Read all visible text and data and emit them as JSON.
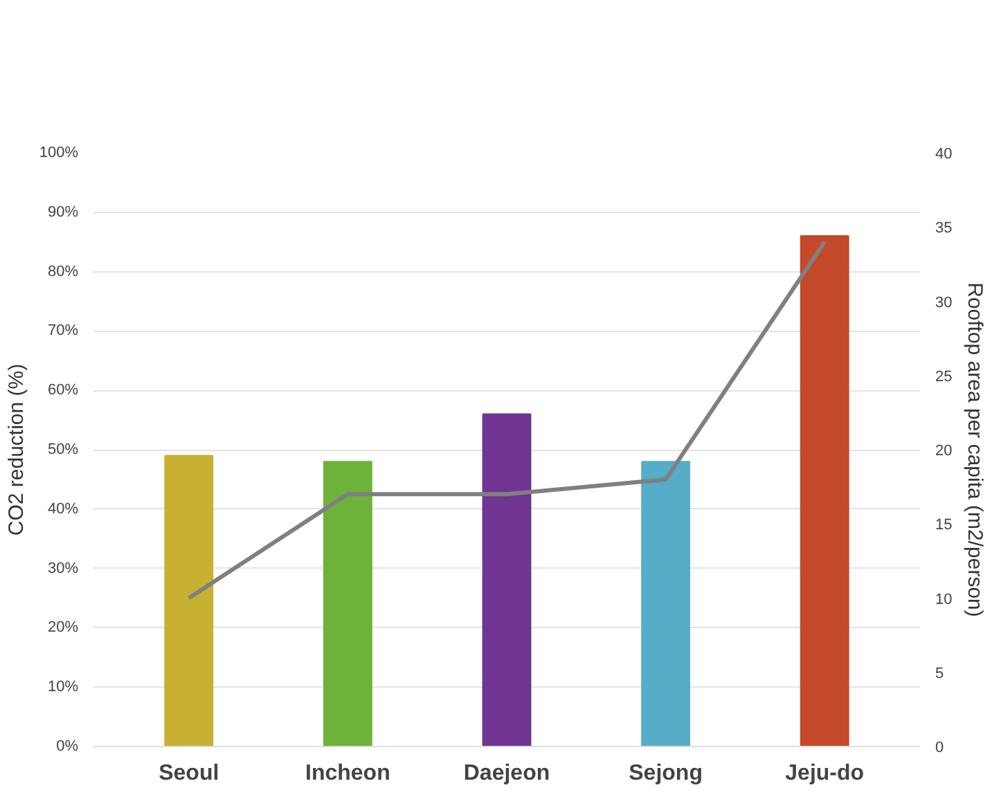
{
  "chart_data": {
    "type": "bar",
    "categories": [
      "Seoul",
      "Incheon",
      "Daejeon",
      "Sejong",
      "Jeju-do"
    ],
    "ylabel": "CO2 reduction (%)",
    "y2label": "Rooftop area per capita (m2/person)",
    "ylim": [
      0,
      100
    ],
    "yticks": [
      {
        "value": 0,
        "label": "0%"
      },
      {
        "value": 10,
        "label": "10%"
      },
      {
        "value": 20,
        "label": "20%"
      },
      {
        "value": 30,
        "label": "30%"
      },
      {
        "value": 40,
        "label": "40%"
      },
      {
        "value": 50,
        "label": "50%"
      },
      {
        "value": 60,
        "label": "60%"
      },
      {
        "value": 70,
        "label": "70%"
      },
      {
        "value": 80,
        "label": "80%"
      },
      {
        "value": 90,
        "label": "90%"
      },
      {
        "value": 100,
        "label": "100%"
      }
    ],
    "y2lim": [
      0,
      40
    ],
    "y2ticks": [
      0,
      5,
      10,
      15,
      20,
      25,
      30,
      35,
      40
    ],
    "grid": "y",
    "series": [
      {
        "colors": [
          "#c8b032",
          "#6db33a",
          "#6f3590",
          "#55adc8",
          "#c4492a"
        ],
        "values": [
          49,
          48,
          56,
          48,
          86
        ]
      },
      {
        "type": "line",
        "axis": "y2",
        "color": "#808080",
        "values": [
          10,
          17,
          17,
          18,
          34
        ]
      }
    ]
  }
}
